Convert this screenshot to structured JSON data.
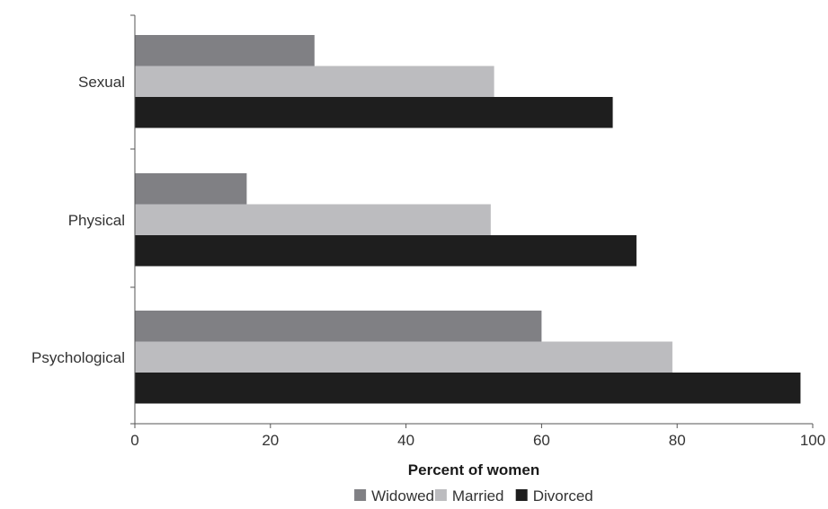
{
  "chart_data": {
    "type": "bar",
    "orientation": "horizontal",
    "title": "",
    "xlabel": "Percent of women",
    "ylabel": "",
    "xlim": [
      0,
      100
    ],
    "xticks": [
      0,
      20,
      40,
      60,
      80,
      100
    ],
    "categories": [
      "Sexual",
      "Physical",
      "Psychological"
    ],
    "series": [
      {
        "name": "Widowed",
        "color": "#808084",
        "values": [
          26.5,
          16.5,
          60
        ]
      },
      {
        "name": "Married",
        "color": "#bcbcbf",
        "values": [
          53,
          52.5,
          79.3
        ]
      },
      {
        "name": "Divorced",
        "color": "#1e1e1e",
        "values": [
          70.5,
          74,
          98.2
        ]
      }
    ],
    "grid": false,
    "legend_position": "bottom"
  }
}
